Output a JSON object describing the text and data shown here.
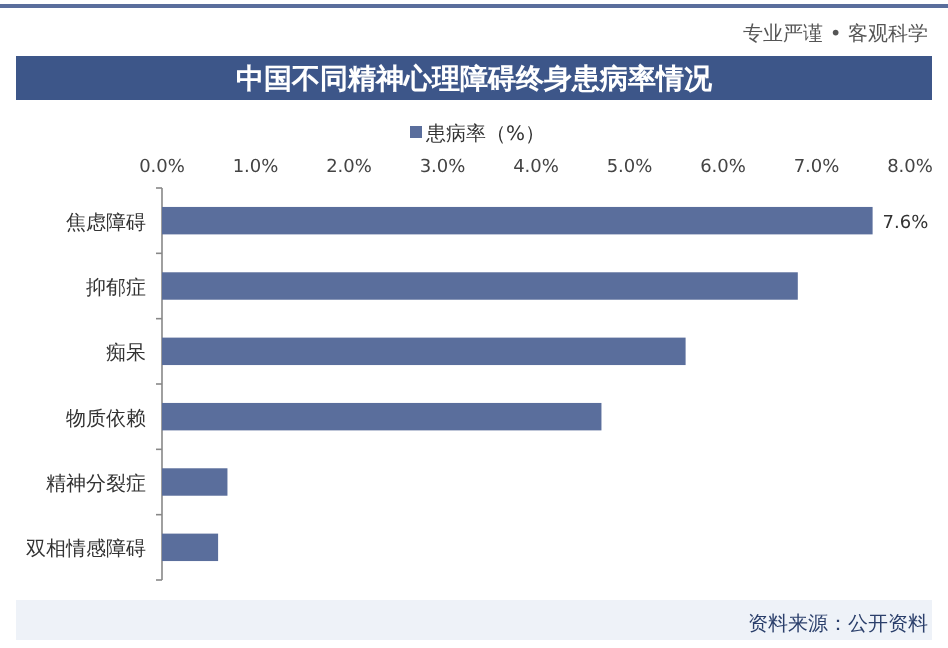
{
  "chart_data": {
    "type": "bar",
    "orientation": "horizontal",
    "title": "中国不同精神心理障碍终身患病率情况",
    "annotations": [
      "专业严谨 • 客观科学",
      "资料来源：公开资料"
    ],
    "categories": [
      "焦虑障碍",
      "抑郁症",
      "痴呆",
      "物质依赖",
      "精神分裂症",
      "双相情感障碍"
    ],
    "series": [
      {
        "name": "患病率（%）",
        "color": "#5a6e9c",
        "values": [
          7.6,
          6.8,
          5.6,
          4.7,
          0.7,
          0.6
        ],
        "value_labels": [
          "7.6%",
          null,
          null,
          null,
          null,
          null
        ]
      }
    ],
    "xlim": [
      0,
      8
    ],
    "xticks": [
      {
        "value": 0,
        "label": "0.0%"
      },
      {
        "value": 1,
        "label": "1.0%"
      },
      {
        "value": 2,
        "label": "2.0%"
      },
      {
        "value": 3,
        "label": "3.0%"
      },
      {
        "value": 4,
        "label": "4.0%"
      },
      {
        "value": 5,
        "label": "5.0%"
      },
      {
        "value": 6,
        "label": "6.0%"
      },
      {
        "value": 7,
        "label": "7.0%"
      },
      {
        "value": 8,
        "label": "8.0%"
      }
    ],
    "legend": "top",
    "grid": false
  }
}
